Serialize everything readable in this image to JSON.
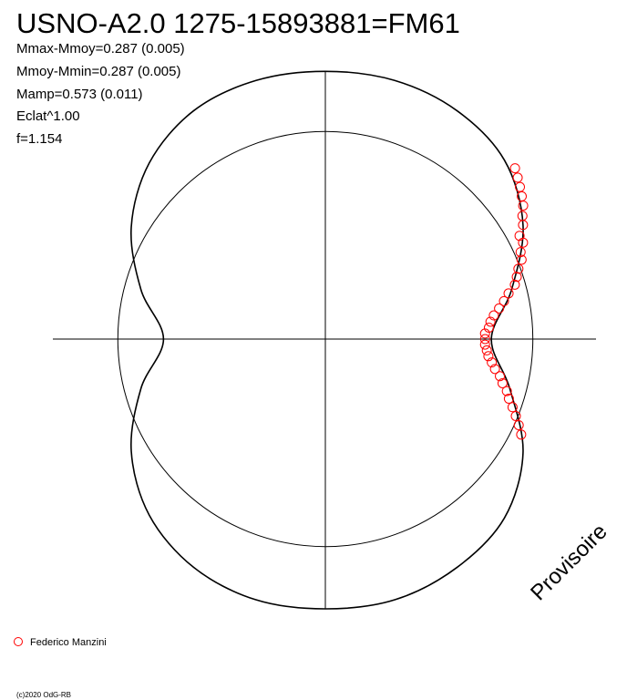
{
  "chart_data": {
    "type": "polar",
    "title": "USNO-A2.0 1275-15893881=FM61",
    "stats": [
      "Mmax-Mmoy=0.287 (0.005)",
      "Mmoy-Mmin=0.287 (0.005)",
      "Mamp=0.573 (0.011)",
      "Eclat^1.00",
      "f=1.154"
    ],
    "watermark": "Provisoire",
    "credit": "(c)2020 OdG-RB",
    "rlim": [
      0,
      1.3
    ],
    "reference_circle": 1,
    "fit": {
      "color": "#000000",
      "angle": [
        0,
        15,
        30,
        45,
        60,
        75,
        90,
        105,
        120,
        135,
        150,
        165,
        180,
        195,
        210,
        225,
        240,
        255,
        270,
        285,
        300,
        315,
        330,
        345
      ],
      "radius": [
        0.8,
        0.93,
        1.1,
        1.22,
        1.27,
        1.29,
        1.29,
        1.29,
        1.27,
        1.2,
        1.08,
        0.92,
        0.78,
        0.92,
        1.08,
        1.2,
        1.27,
        1.3,
        1.3,
        1.3,
        1.27,
        1.22,
        1.1,
        0.92
      ]
    },
    "series": [
      {
        "name": "Federico Manzini",
        "color": "#ff0000",
        "angle": [
          42,
          40,
          38,
          36,
          34,
          32,
          30,
          28,
          26,
          24,
          22,
          20,
          18,
          16,
          14,
          12,
          10,
          8,
          6,
          4,
          2,
          0,
          -2,
          -4,
          -6,
          -8,
          -10,
          -12,
          -14,
          -16,
          -18,
          -20,
          -22,
          -24,
          -26
        ],
        "radius": [
          1.23,
          1.21,
          1.19,
          1.17,
          1.15,
          1.12,
          1.1,
          1.06,
          1.06,
          1.03,
          1.02,
          0.99,
          0.97,
          0.95,
          0.91,
          0.88,
          0.85,
          0.82,
          0.8,
          0.79,
          0.77,
          0.77,
          0.77,
          0.78,
          0.79,
          0.81,
          0.83,
          0.86,
          0.88,
          0.91,
          0.93,
          0.96,
          0.99,
          1.02,
          1.05
        ]
      }
    ]
  }
}
